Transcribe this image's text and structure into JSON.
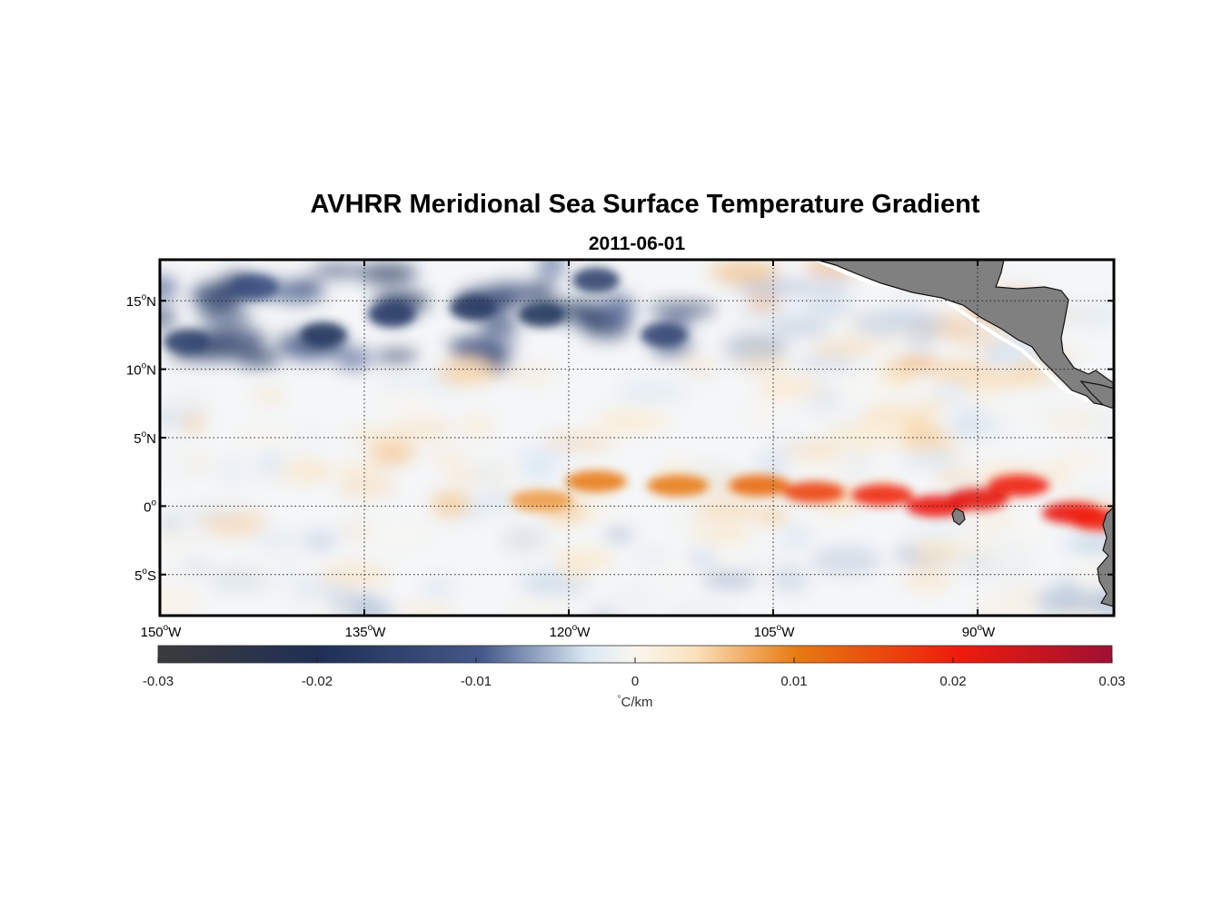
{
  "figure": {
    "title": "AVHRR Meridional Sea Surface Temperature Gradient",
    "subtitle": "2011-06-01"
  },
  "map": {
    "projection": "equirectangular",
    "lon_range": [
      -150,
      -80
    ],
    "lat_range": [
      -8,
      18
    ],
    "lat_ticks": [
      {
        "value": 15,
        "num": "15",
        "hem": "N"
      },
      {
        "value": 10,
        "num": "10",
        "hem": "N"
      },
      {
        "value": 5,
        "num": "5",
        "hem": "N"
      },
      {
        "value": 0,
        "num": "0",
        "hem": ""
      },
      {
        "value": -5,
        "num": "5",
        "hem": "S"
      }
    ],
    "lon_ticks": [
      {
        "value": -150,
        "num": "150",
        "hem": "W"
      },
      {
        "value": -135,
        "num": "135",
        "hem": "W"
      },
      {
        "value": -120,
        "num": "120",
        "hem": "W"
      },
      {
        "value": -105,
        "num": "105",
        "hem": "W"
      },
      {
        "value": -90,
        "num": "90",
        "hem": "W"
      }
    ],
    "gridlines": "dotted",
    "land_color": "#808080",
    "features": {
      "equatorial_front": [
        {
          "lon": -122,
          "lat": 0.4,
          "v": 0.008
        },
        {
          "lon": -118,
          "lat": 1.8,
          "v": 0.01
        },
        {
          "lon": -112,
          "lat": 1.5,
          "v": 0.01
        },
        {
          "lon": -106,
          "lat": 1.5,
          "v": 0.012
        },
        {
          "lon": -102,
          "lat": 1.0,
          "v": 0.016
        },
        {
          "lon": -97,
          "lat": 0.8,
          "v": 0.019
        },
        {
          "lon": -93,
          "lat": 0.0,
          "v": 0.021
        },
        {
          "lon": -90,
          "lat": 0.5,
          "v": 0.022
        },
        {
          "lon": -87,
          "lat": 1.5,
          "v": 0.02
        },
        {
          "lon": -83,
          "lat": -0.5,
          "v": 0.021
        },
        {
          "lon": -81,
          "lat": -1.0,
          "v": 0.02
        }
      ],
      "northern_cold_band": [
        {
          "lon": -148,
          "lat": 12,
          "v": -0.015
        },
        {
          "lon": -143,
          "lat": 16,
          "v": -0.012
        },
        {
          "lon": -138,
          "lat": 12.5,
          "v": -0.018
        },
        {
          "lon": -133,
          "lat": 14,
          "v": -0.016
        },
        {
          "lon": -127,
          "lat": 14.5,
          "v": -0.017
        },
        {
          "lon": -122,
          "lat": 14,
          "v": -0.018
        },
        {
          "lon": -118,
          "lat": 16.5,
          "v": -0.015
        },
        {
          "lon": -113,
          "lat": 12.5,
          "v": -0.014
        }
      ]
    }
  },
  "colorbar": {
    "min": -0.03,
    "max": 0.03,
    "ticks": [
      {
        "value": -0.03,
        "label": "-0.03"
      },
      {
        "value": -0.02,
        "label": "-0.02"
      },
      {
        "value": -0.01,
        "label": "-0.01"
      },
      {
        "value": 0,
        "label": "0"
      },
      {
        "value": 0.01,
        "label": "0.01"
      },
      {
        "value": 0.02,
        "label": "0.02"
      },
      {
        "value": 0.03,
        "label": "0.03"
      }
    ],
    "units_symbol": "°",
    "units_text": "C/km",
    "colors": [
      "#3b3b3b",
      "#1f2f55",
      "#44598a",
      "#dbe8f4",
      "#f9f6ef",
      "#fbe3c0",
      "#e77a10",
      "#f01a0c",
      "#a01033"
    ]
  }
}
